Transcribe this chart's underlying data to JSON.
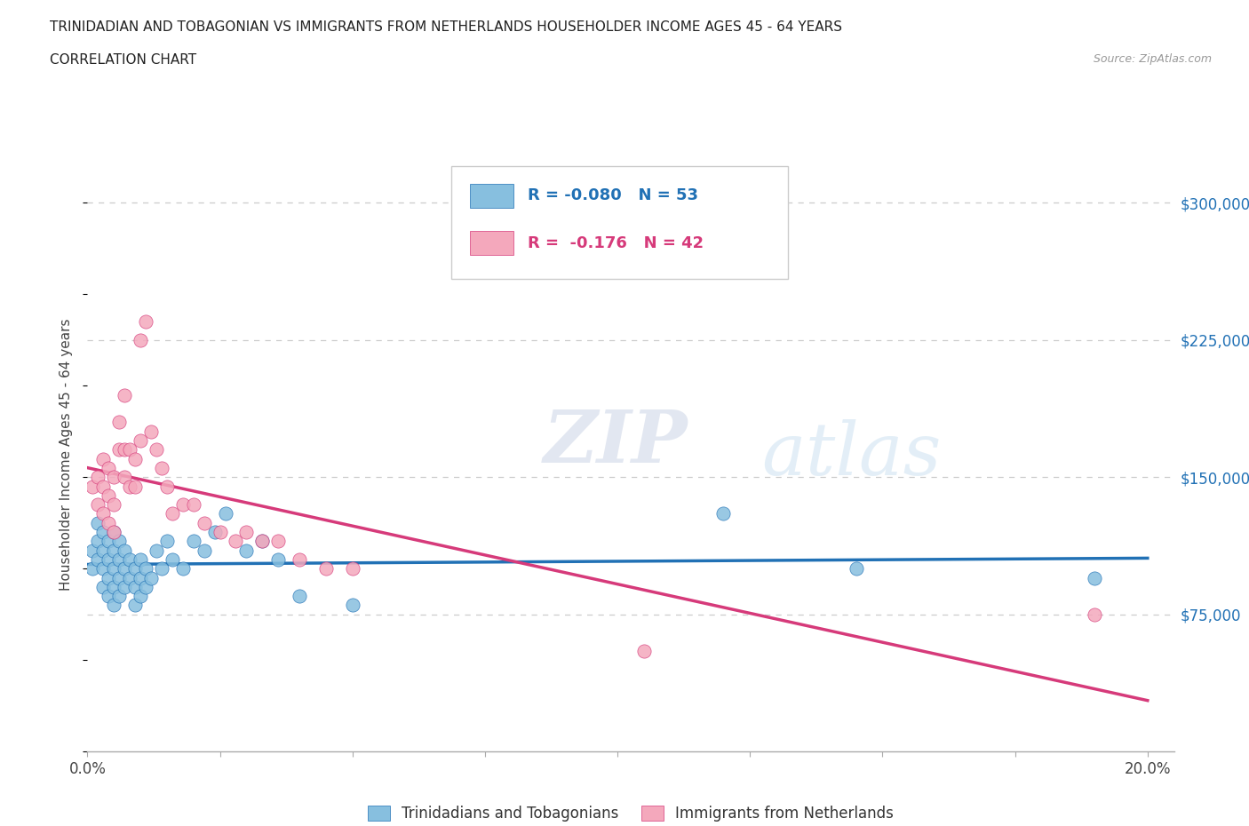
{
  "title_line1": "TRINIDADIAN AND TOBAGONIAN VS IMMIGRANTS FROM NETHERLANDS HOUSEHOLDER INCOME AGES 45 - 64 YEARS",
  "title_line2": "CORRELATION CHART",
  "source_text": "Source: ZipAtlas.com",
  "ylabel": "Householder Income Ages 45 - 64 years",
  "xlim": [
    0.0,
    0.205
  ],
  "ylim": [
    0,
    325000
  ],
  "xtick_positions": [
    0.0,
    0.025,
    0.05,
    0.075,
    0.1,
    0.125,
    0.15,
    0.175,
    0.2
  ],
  "xticklabels": [
    "0.0%",
    "",
    "",
    "",
    "",
    "",
    "",
    "",
    "20.0%"
  ],
  "ytick_positions": [
    75000,
    150000,
    225000,
    300000
  ],
  "ytick_labels": [
    "$75,000",
    "$150,000",
    "$225,000",
    "$300,000"
  ],
  "blue_color": "#87BFDF",
  "pink_color": "#F4A8BC",
  "blue_line_color": "#2171b5",
  "pink_line_color": "#d63a7a",
  "r_blue": -0.08,
  "n_blue": 53,
  "r_pink": -0.176,
  "n_pink": 42,
  "watermark_zip": "ZIP",
  "watermark_atlas": "atlas",
  "legend_label_blue": "Trinidadians and Tobagonians",
  "legend_label_pink": "Immigrants from Netherlands",
  "blue_scatter_x": [
    0.001,
    0.001,
    0.002,
    0.002,
    0.002,
    0.003,
    0.003,
    0.003,
    0.003,
    0.004,
    0.004,
    0.004,
    0.004,
    0.005,
    0.005,
    0.005,
    0.005,
    0.005,
    0.006,
    0.006,
    0.006,
    0.006,
    0.007,
    0.007,
    0.007,
    0.008,
    0.008,
    0.009,
    0.009,
    0.009,
    0.01,
    0.01,
    0.01,
    0.011,
    0.011,
    0.012,
    0.013,
    0.014,
    0.015,
    0.016,
    0.018,
    0.02,
    0.022,
    0.024,
    0.026,
    0.03,
    0.033,
    0.036,
    0.04,
    0.05,
    0.12,
    0.145,
    0.19
  ],
  "blue_scatter_y": [
    100000,
    110000,
    105000,
    115000,
    125000,
    90000,
    100000,
    110000,
    120000,
    85000,
    95000,
    105000,
    115000,
    80000,
    90000,
    100000,
    110000,
    120000,
    85000,
    95000,
    105000,
    115000,
    90000,
    100000,
    110000,
    95000,
    105000,
    80000,
    90000,
    100000,
    85000,
    95000,
    105000,
    90000,
    100000,
    95000,
    110000,
    100000,
    115000,
    105000,
    100000,
    115000,
    110000,
    120000,
    130000,
    110000,
    115000,
    105000,
    85000,
    80000,
    130000,
    100000,
    95000
  ],
  "pink_scatter_x": [
    0.001,
    0.002,
    0.002,
    0.003,
    0.003,
    0.003,
    0.004,
    0.004,
    0.004,
    0.005,
    0.005,
    0.005,
    0.006,
    0.006,
    0.007,
    0.007,
    0.007,
    0.008,
    0.008,
    0.009,
    0.009,
    0.01,
    0.01,
    0.011,
    0.012,
    0.013,
    0.014,
    0.015,
    0.016,
    0.018,
    0.02,
    0.022,
    0.025,
    0.028,
    0.03,
    0.033,
    0.036,
    0.04,
    0.045,
    0.05,
    0.105,
    0.19
  ],
  "pink_scatter_y": [
    145000,
    135000,
    150000,
    130000,
    145000,
    160000,
    125000,
    140000,
    155000,
    120000,
    135000,
    150000,
    165000,
    180000,
    150000,
    165000,
    195000,
    145000,
    165000,
    145000,
    160000,
    170000,
    225000,
    235000,
    175000,
    165000,
    155000,
    145000,
    130000,
    135000,
    135000,
    125000,
    120000,
    115000,
    120000,
    115000,
    115000,
    105000,
    100000,
    100000,
    55000,
    75000
  ]
}
